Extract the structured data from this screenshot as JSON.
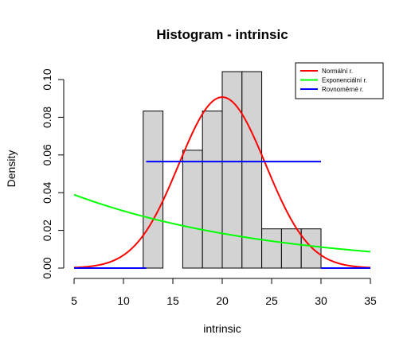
{
  "chart_data": {
    "type": "histogram",
    "title": "Histogram - intrinsic",
    "xlabel": "intrinsic",
    "ylabel": "Density",
    "xlim": [
      5,
      35
    ],
    "ylim": [
      0,
      0.1
    ],
    "xticks": [
      "5",
      "10",
      "15",
      "20",
      "25",
      "30",
      "35"
    ],
    "yticks": [
      "0.00",
      "0.02",
      "0.04",
      "0.06",
      "0.08",
      "0.10"
    ],
    "bins": [
      {
        "x0": 12,
        "x1": 14,
        "density": 0.0833
      },
      {
        "x0": 14,
        "x1": 16,
        "density": 0.0
      },
      {
        "x0": 16,
        "x1": 18,
        "density": 0.0625
      },
      {
        "x0": 18,
        "x1": 20,
        "density": 0.0833
      },
      {
        "x0": 20,
        "x1": 22,
        "density": 0.1042
      },
      {
        "x0": 22,
        "x1": 24,
        "density": 0.1042
      },
      {
        "x0": 24,
        "x1": 26,
        "density": 0.0208
      },
      {
        "x0": 26,
        "x1": 28,
        "density": 0.0208
      },
      {
        "x0": 28,
        "x1": 30,
        "density": 0.0208
      }
    ],
    "bar_color": "#d3d3d3",
    "series": [
      {
        "name": "Normální r.",
        "kind": "normal",
        "mean": 20.0,
        "sd": 4.4,
        "color": "#ff0000"
      },
      {
        "name": "Exponenciální r.",
        "kind": "exponential",
        "rate": 0.05,
        "color": "#00ff00"
      },
      {
        "name": "Rovnoměrné r.",
        "kind": "uniform",
        "min": 12.3,
        "max": 30.0,
        "color": "#0000ff"
      }
    ],
    "legend_position": "top-right",
    "grid": false
  }
}
